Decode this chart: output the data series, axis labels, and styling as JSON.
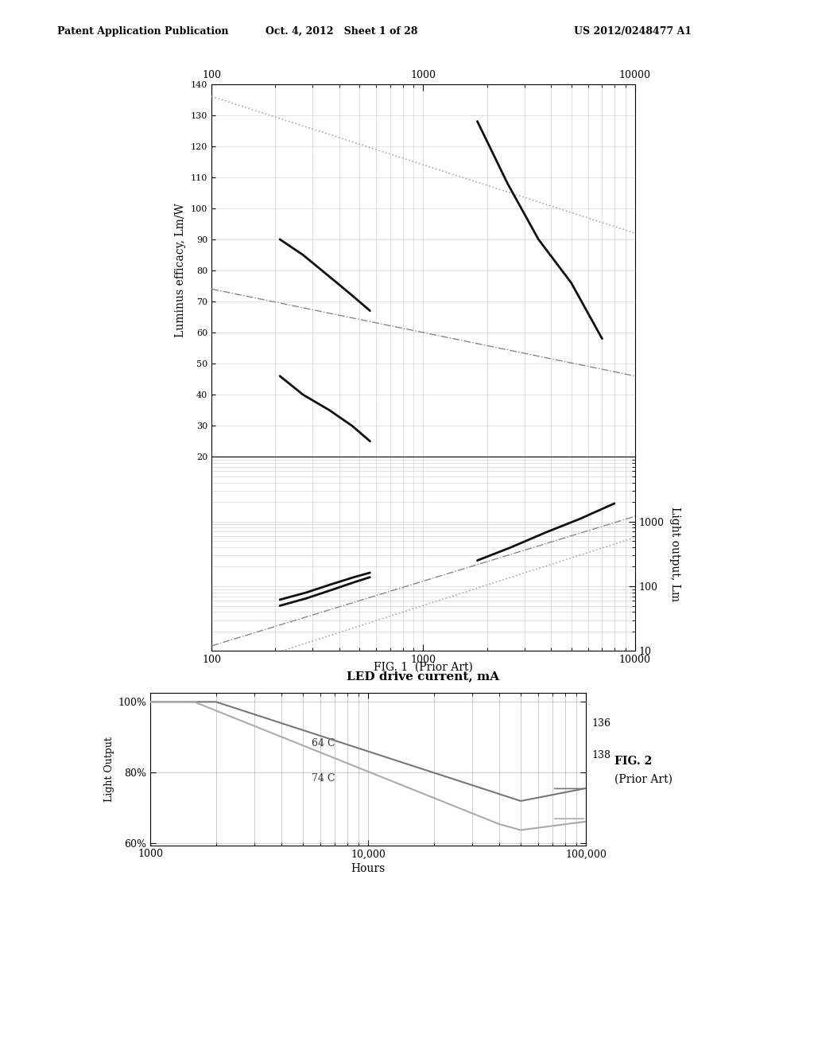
{
  "header_left": "Patent Application Publication",
  "header_center": "Oct. 4, 2012   Sheet 1 of 28",
  "header_right": "US 2012/0248477 A1",
  "fig1_caption": "FIG. 1  (Prior Art)",
  "fig2_caption": "FIG. 2",
  "fig2_caption2": "(Prior Art)",
  "top_xlabel": "LED drive current, mA",
  "top_ylabel1": "Luminus efficacy, Lm/W",
  "top_ylabel2": "Light output, Lm",
  "fig2_xlabel": "Hours",
  "fig2_ylabel": "Light Output",
  "background_color": "#ffffff"
}
